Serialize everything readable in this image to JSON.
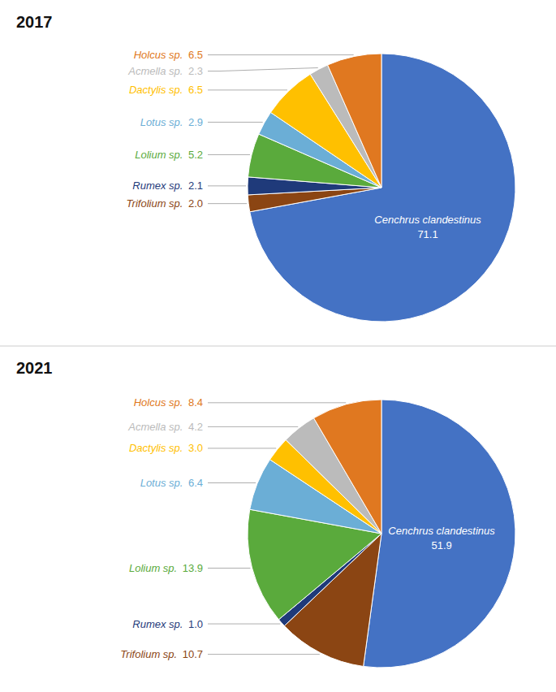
{
  "chart_data": [
    {
      "type": "pie",
      "title": "2017",
      "categories": [
        "Cenchrus clandestinus",
        "Trifolium sp.",
        "Rumex sp.",
        "Lolium sp.",
        "Lotus sp.",
        "Dactylis sp.",
        "Acmella sp.",
        "Holcus sp."
      ],
      "values": [
        71.1,
        2.0,
        2.1,
        5.2,
        2.9,
        6.5,
        2.3,
        6.5
      ],
      "value_labels": [
        "71.1",
        "2.0",
        "2.1",
        "5.2",
        "2.9",
        "6.5",
        "2.3",
        "6.5"
      ],
      "colors": [
        "#4472C4",
        "#8B4513",
        "#1F3A7A",
        "#5AAA3C",
        "#6BAED6",
        "#FFC000",
        "#BBBBBB",
        "#E07820"
      ],
      "data_labels": true
    },
    {
      "type": "pie",
      "title": "2021",
      "categories": [
        "Cenchrus clandestinus",
        "Trifolium sp.",
        "Rumex sp.",
        "Lolium sp.",
        "Lotus sp.",
        "Dactylis sp.",
        "Acmella sp.",
        "Holcus sp."
      ],
      "values": [
        51.9,
        10.7,
        1.0,
        13.9,
        6.4,
        3.0,
        4.2,
        8.4
      ],
      "value_labels": [
        "51.9",
        "10.7",
        "1.0",
        "13.9",
        "6.4",
        "3.0",
        "4.2",
        "8.4"
      ],
      "colors": [
        "#4472C4",
        "#8B4513",
        "#1F3A7A",
        "#5AAA3C",
        "#6BAED6",
        "#FFC000",
        "#BBBBBB",
        "#E07820"
      ],
      "data_labels": true
    }
  ]
}
